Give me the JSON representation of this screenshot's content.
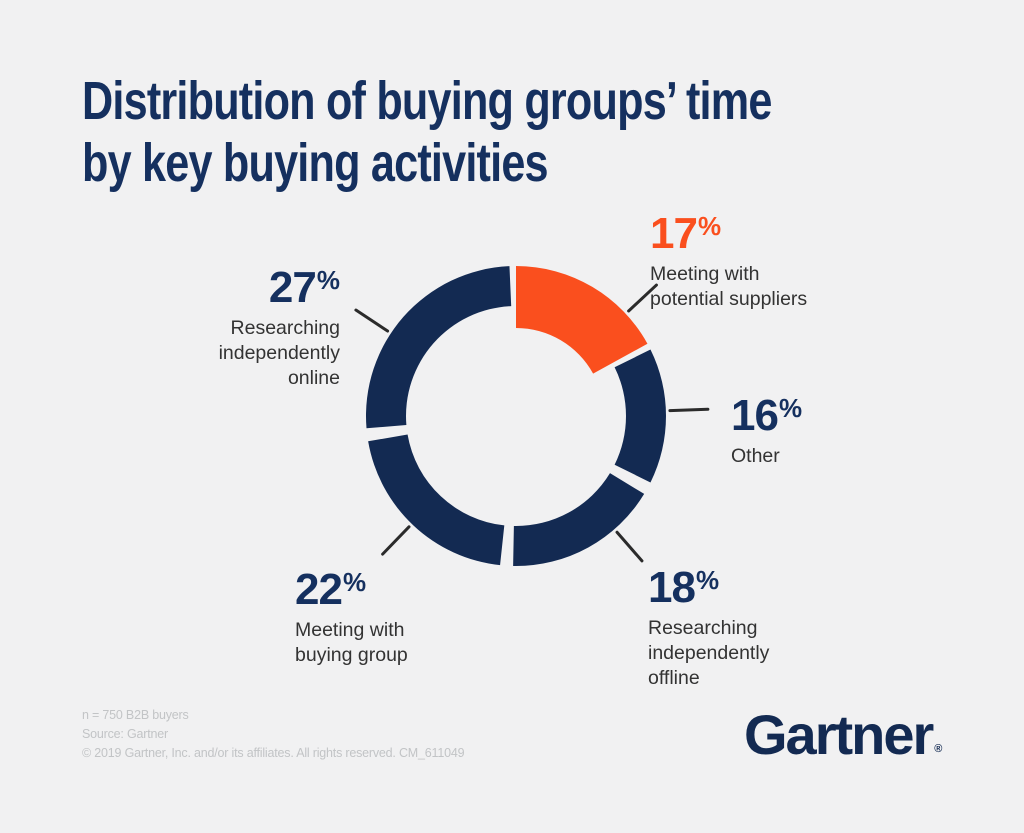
{
  "page": {
    "background_color": "#F1F1F2",
    "title": "Distribution of buying groups’ time\nby key buying activities"
  },
  "colors": {
    "navy": "#132A52",
    "orange": "#FA4F1E",
    "title_navy": "#15305F",
    "label_text": "#333333",
    "footer_gray": "#C2C4C6",
    "tick": "#2B2B2B",
    "background": "#F1F1F2"
  },
  "chart_data": {
    "type": "pie",
    "subtype": "donut",
    "title": "Distribution of buying groups’ time by key buying activities",
    "unit": "%",
    "direction": "clockwise",
    "start_angle_deg": 0,
    "segments": [
      {
        "label": "Meeting with potential suppliers",
        "value": 17,
        "color": "#FA4F1E",
        "highlight": true
      },
      {
        "label": "Other",
        "value": 16,
        "color": "#132A52",
        "highlight": false
      },
      {
        "label": "Researching independently offline",
        "value": 18,
        "color": "#132A52",
        "highlight": false
      },
      {
        "label": "Meeting with buying group",
        "value": 22,
        "color": "#132A52",
        "highlight": false
      },
      {
        "label": "Researching independently online",
        "value": 27,
        "color": "#132A52",
        "highlight": false
      }
    ],
    "sample_note": "n = 750 B2B buyers",
    "source": "Source: Gartner"
  },
  "callouts": [
    {
      "text": "Meeting with\npotential suppliers"
    },
    {
      "text": "Other"
    },
    {
      "text": "Researching\nindependently\noffline"
    },
    {
      "text": "Meeting with\nbuying group"
    },
    {
      "text": "Researching\nindependently\nonline"
    }
  ],
  "footer": {
    "line1": "n = 750 B2B buyers",
    "line2": "Source: Gartner",
    "line3": "© 2019 Gartner, Inc. and/or its affiliates. All rights reserved. CM_611049"
  },
  "logo": {
    "text": "Gartner",
    "registered": "®"
  }
}
